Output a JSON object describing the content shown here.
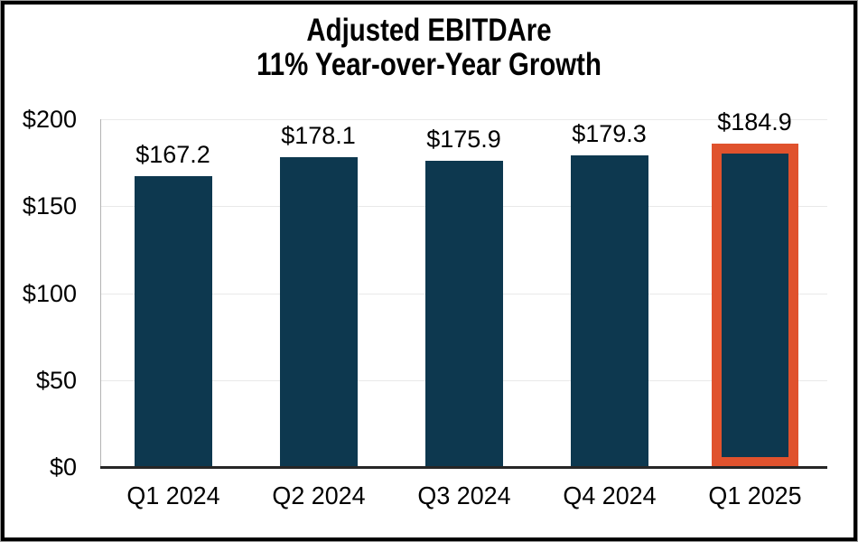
{
  "window": {
    "background": "#ffffff",
    "outer_border_color": "#000000"
  },
  "chart_data": {
    "type": "bar",
    "title": "Adjusted EBITDAre",
    "subtitle": "11% Year-over-Year Growth",
    "categories": [
      "Q1 2024",
      "Q2 2024",
      "Q3 2024",
      "Q4 2024",
      "Q1 2025"
    ],
    "values": [
      167.2,
      178.1,
      175.9,
      179.3,
      184.9
    ],
    "data_labels": [
      "$167.2",
      "$178.1",
      "$175.9",
      "$179.3",
      "$184.9"
    ],
    "ylim": [
      0,
      200
    ],
    "yticks": [
      0,
      50,
      100,
      150,
      200
    ],
    "ytick_labels": [
      "$0",
      "$50",
      "$100",
      "$150",
      "$200"
    ],
    "grid": true,
    "legend": "none",
    "bar_color": "#0d384f",
    "highlight": {
      "index": 4,
      "border_color": "#e0522d"
    },
    "gridline_color": "#e9e9e9",
    "y_axis_color": "#b3b3b3",
    "baseline_color": "#262626",
    "text_color": "#000000"
  }
}
